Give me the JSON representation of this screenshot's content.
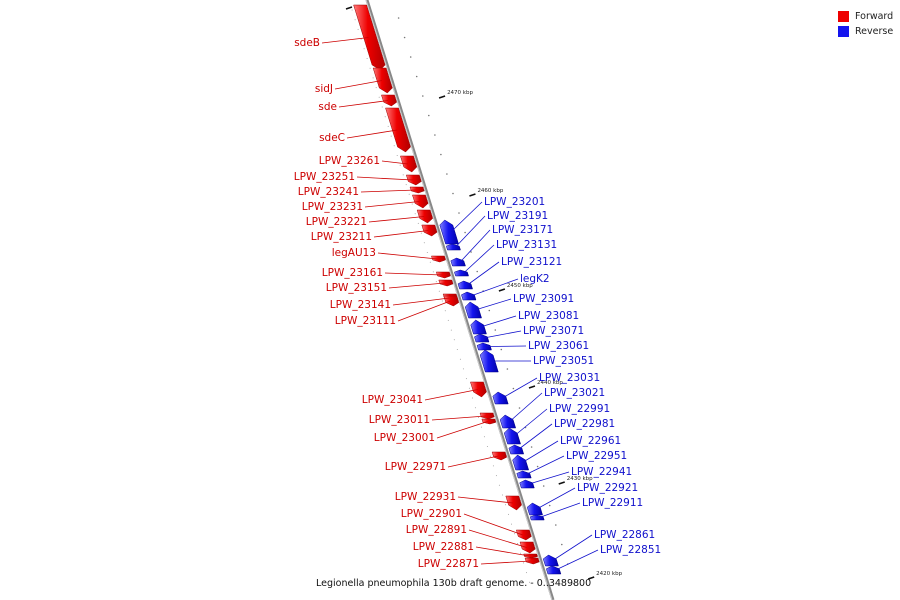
{
  "legend": {
    "forward_label": "Forward",
    "reverse_label": "Reverse",
    "forward_color": "#ee0000",
    "reverse_color": "#1414ee"
  },
  "caption": "Legionella pneumophila 130b draft genome. - 0..3489800",
  "colors": {
    "axis": "#888888",
    "forward_label": "#cc0000",
    "reverse_label": "#1010cc"
  },
  "ticks": [
    "2470 kbp",
    "2460 kbp",
    "2450 kbp",
    "2440 kbp",
    "2430 kbp",
    "2420 kbp"
  ],
  "genes": [
    {
      "name": "sdeB",
      "strand": "forward"
    },
    {
      "name": "sidJ",
      "strand": "forward"
    },
    {
      "name": "sde",
      "strand": "forward"
    },
    {
      "name": "sdeC",
      "strand": "forward"
    },
    {
      "name": "LPW_23261",
      "strand": "forward"
    },
    {
      "name": "LPW_23251",
      "strand": "forward"
    },
    {
      "name": "LPW_23241",
      "strand": "forward"
    },
    {
      "name": "LPW_23231",
      "strand": "forward"
    },
    {
      "name": "LPW_23221",
      "strand": "forward"
    },
    {
      "name": "LPW_23211",
      "strand": "forward"
    },
    {
      "name": "legAU13",
      "strand": "forward"
    },
    {
      "name": "LPW_23161",
      "strand": "forward"
    },
    {
      "name": "LPW_23151",
      "strand": "forward"
    },
    {
      "name": "LPW_23141",
      "strand": "forward"
    },
    {
      "name": "LPW_23111",
      "strand": "forward"
    },
    {
      "name": "LPW_23041",
      "strand": "forward"
    },
    {
      "name": "LPW_23011",
      "strand": "forward"
    },
    {
      "name": "LPW_23001",
      "strand": "forward"
    },
    {
      "name": "LPW_22971",
      "strand": "forward"
    },
    {
      "name": "LPW_22931",
      "strand": "forward"
    },
    {
      "name": "LPW_22901",
      "strand": "forward"
    },
    {
      "name": "LPW_22891",
      "strand": "forward"
    },
    {
      "name": "LPW_22881",
      "strand": "forward"
    },
    {
      "name": "LPW_22871",
      "strand": "forward"
    },
    {
      "name": "LPW_23201",
      "strand": "reverse"
    },
    {
      "name": "LPW_23191",
      "strand": "reverse"
    },
    {
      "name": "LPW_23171",
      "strand": "reverse"
    },
    {
      "name": "LPW_23131",
      "strand": "reverse"
    },
    {
      "name": "LPW_23121",
      "strand": "reverse"
    },
    {
      "name": "legK2",
      "strand": "reverse"
    },
    {
      "name": "LPW_23091",
      "strand": "reverse"
    },
    {
      "name": "LPW_23081",
      "strand": "reverse"
    },
    {
      "name": "LPW_23071",
      "strand": "reverse"
    },
    {
      "name": "LPW_23061",
      "strand": "reverse"
    },
    {
      "name": "LPW_23051",
      "strand": "reverse"
    },
    {
      "name": "LPW_23031",
      "strand": "reverse"
    },
    {
      "name": "LPW_23021",
      "strand": "reverse"
    },
    {
      "name": "LPW_22991",
      "strand": "reverse"
    },
    {
      "name": "LPW_22981",
      "strand": "reverse"
    },
    {
      "name": "LPW_22961",
      "strand": "reverse"
    },
    {
      "name": "LPW_22951",
      "strand": "reverse"
    },
    {
      "name": "LPW_22941",
      "strand": "reverse"
    },
    {
      "name": "LPW_22921",
      "strand": "reverse"
    },
    {
      "name": "LPW_22911",
      "strand": "reverse"
    },
    {
      "name": "LPW_22861",
      "strand": "reverse"
    },
    {
      "name": "LPW_22851",
      "strand": "reverse"
    }
  ]
}
